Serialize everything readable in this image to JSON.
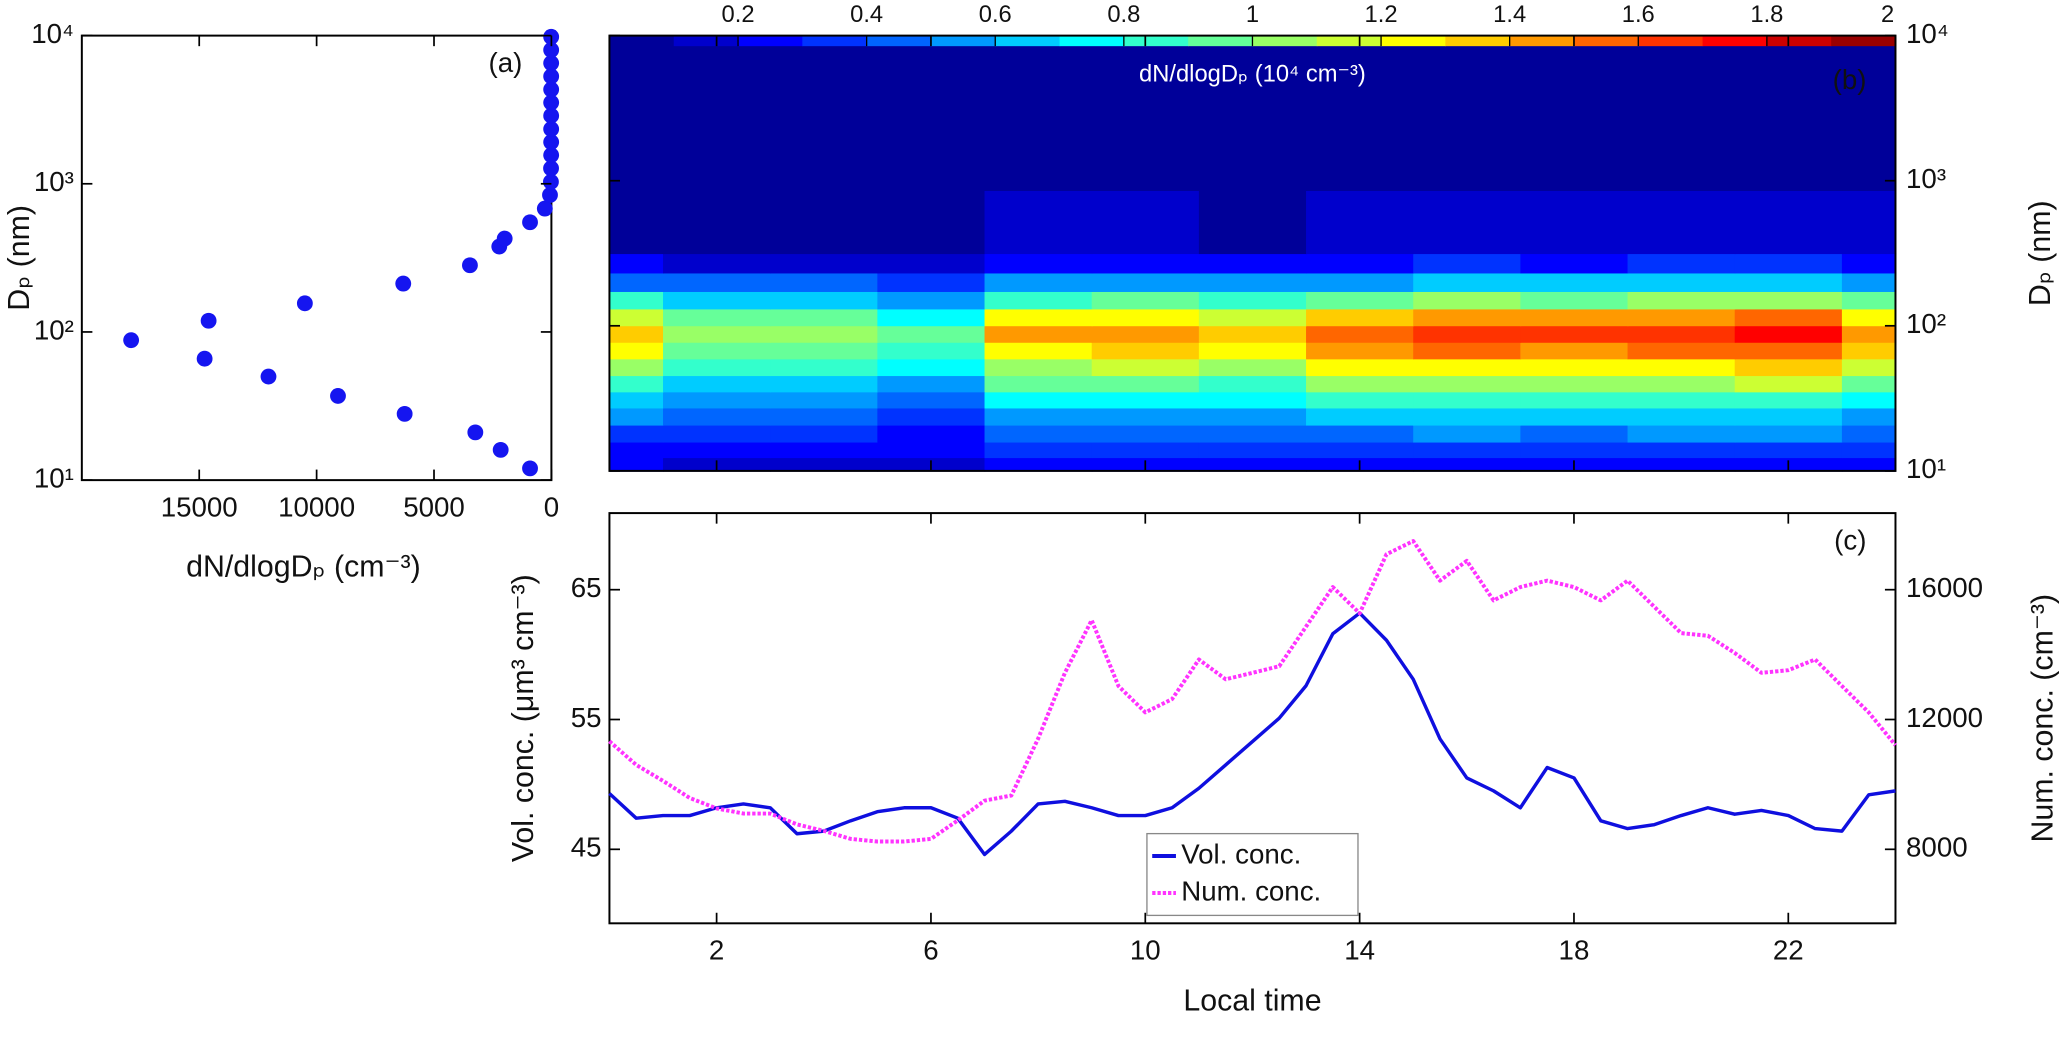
{
  "chart_data": [
    {
      "type": "scatter",
      "annotation": "(a)",
      "xlabel": "dN/dlogDₚ (cm⁻³)",
      "ylabel": "Dₚ (nm)",
      "color": "#1515f0",
      "x": [
        17900,
        14770,
        14600,
        12050,
        10500,
        9090,
        6310,
        6250,
        3470,
        3240,
        2220,
        2160,
        1990,
        910,
        910,
        280,
        60,
        20,
        15,
        10,
        10,
        10,
        10,
        10,
        10,
        10,
        10,
        10,
        10
      ],
      "y": [
        88,
        66,
        119,
        50,
        156,
        37,
        212,
        28,
        282,
        21,
        377,
        16,
        427,
        12,
        550,
        680,
        840,
        1030,
        1270,
        1560,
        1910,
        2340,
        2880,
        3530,
        4330,
        5310,
        6520,
        8000,
        9810
      ],
      "xlim": [
        20000,
        0
      ],
      "xticks": [
        15000,
        10000,
        5000,
        0
      ],
      "ylim": [
        10,
        10000
      ],
      "log_y": true,
      "yticks": [
        {
          "value": 10,
          "label": "10¹"
        },
        {
          "value": 100,
          "label": "10²"
        },
        {
          "value": 1000,
          "label": "10³"
        },
        {
          "value": 10000,
          "label": "10⁴"
        }
      ]
    },
    {
      "type": "heatmap",
      "annotation": "(b)",
      "ylabel": "Dₚ (nm)",
      "colorbar_label": "dN/dlogDₚ (10⁴ cm⁻³)",
      "colormap": "jet",
      "levels": 20,
      "x": [
        0,
        2,
        4,
        6,
        8,
        10,
        12,
        14,
        16,
        18,
        20,
        22,
        24
      ],
      "y": [
        11,
        14,
        18,
        24,
        31,
        40,
        52,
        68,
        88,
        115,
        150,
        200,
        270,
        370,
        2000
      ],
      "z": [
        [
          0.2,
          0.16,
          0.16,
          0.14,
          0.21,
          0.22,
          0.2,
          0.23,
          0.25,
          0.24,
          0.25,
          0.26,
          0.22
        ],
        [
          0.29,
          0.23,
          0.23,
          0.2,
          0.31,
          0.32,
          0.3,
          0.34,
          0.36,
          0.35,
          0.36,
          0.37,
          0.32
        ],
        [
          0.39,
          0.32,
          0.32,
          0.27,
          0.42,
          0.44,
          0.41,
          0.47,
          0.5,
          0.48,
          0.5,
          0.51,
          0.44
        ],
        [
          0.52,
          0.42,
          0.42,
          0.36,
          0.56,
          0.58,
          0.54,
          0.62,
          0.66,
          0.64,
          0.66,
          0.68,
          0.58
        ],
        [
          0.68,
          0.55,
          0.55,
          0.47,
          0.73,
          0.75,
          0.7,
          0.81,
          0.86,
          0.83,
          0.86,
          0.88,
          0.75
        ],
        [
          0.85,
          0.68,
          0.68,
          0.59,
          0.91,
          0.94,
          0.88,
          1.01,
          1.07,
          1.04,
          1.07,
          1.11,
          0.94
        ],
        [
          1.01,
          0.82,
          0.82,
          0.7,
          1.09,
          1.13,
          1.05,
          1.21,
          1.29,
          1.25,
          1.29,
          1.33,
          1.13
        ],
        [
          1.2,
          0.97,
          0.97,
          0.83,
          1.29,
          1.33,
          1.24,
          1.43,
          1.52,
          1.47,
          1.52,
          1.56,
          1.33
        ],
        [
          1.3,
          1.05,
          1.05,
          0.9,
          1.4,
          1.45,
          1.35,
          1.55,
          1.65,
          1.6,
          1.65,
          1.7,
          1.45
        ],
        [
          1.14,
          0.92,
          0.92,
          0.79,
          1.23,
          1.28,
          1.19,
          1.36,
          1.45,
          1.41,
          1.45,
          1.5,
          1.28
        ],
        [
          0.81,
          0.65,
          0.65,
          0.56,
          0.87,
          0.9,
          0.84,
          0.96,
          1.02,
          0.99,
          1.02,
          1.05,
          0.9
        ],
        [
          0.49,
          0.4,
          0.4,
          0.34,
          0.53,
          0.55,
          0.51,
          0.59,
          0.63,
          0.61,
          0.63,
          0.65,
          0.55
        ],
        [
          0.23,
          0.19,
          0.19,
          0.16,
          0.25,
          0.26,
          0.24,
          0.28,
          0.3,
          0.29,
          0.3,
          0.31,
          0.26
        ],
        [
          0.09,
          0.07,
          0.07,
          0.06,
          0.1,
          0.1,
          0.09,
          0.11,
          0.12,
          0.11,
          0.12,
          0.12,
          0.1
        ],
        [
          0.01,
          0.01,
          0.01,
          0.01,
          0.01,
          0.01,
          0.01,
          0.01,
          0.01,
          0.01,
          0.01,
          0.01,
          0.01
        ]
      ],
      "xlim": [
        0,
        24
      ],
      "xticks": [
        2,
        6,
        10,
        14,
        18,
        22
      ],
      "ylim": [
        10,
        10000
      ],
      "log_y": true,
      "yticks": [
        {
          "value": 10,
          "label": "10¹"
        },
        {
          "value": 100,
          "label": "10²"
        },
        {
          "value": 1000,
          "label": "10³"
        },
        {
          "value": 10000,
          "label": "10⁴"
        }
      ],
      "clim": [
        0,
        2
      ],
      "cticks": [
        0.2,
        0.4,
        0.6,
        0.8,
        1,
        1.2,
        1.4,
        1.6,
        1.8,
        2
      ]
    },
    {
      "type": "line",
      "annotation": "(c)",
      "xlabel": "Local time",
      "ylabel": "Vol. conc. (μm³ cm⁻³)",
      "y2label": "Num. conc. (cm⁻³)",
      "legend": "lower center",
      "x": [
        0,
        0.5,
        1,
        1.5,
        2,
        2.5,
        3,
        3.5,
        4,
        4.5,
        5,
        5.5,
        6,
        6.5,
        7,
        7.5,
        8,
        8.5,
        9,
        9.5,
        10,
        10.5,
        11,
        11.5,
        12,
        12.5,
        13,
        13.5,
        14,
        14.5,
        15,
        15.5,
        16,
        16.5,
        17,
        17.5,
        18,
        18.5,
        19,
        19.5,
        20,
        20.5,
        21,
        21.5,
        22,
        22.5,
        23,
        23.5,
        24
      ],
      "series": [
        {
          "name": "Vol. conc.",
          "color": "#0f0fdf",
          "values": [
            49.3,
            47.4,
            47.6,
            47.6,
            48.2,
            48.5,
            48.2,
            46.2,
            46.4,
            47.2,
            47.9,
            48.2,
            48.2,
            47.4,
            44.6,
            46.4,
            48.5,
            48.7,
            48.2,
            47.6,
            47.6,
            48.2,
            49.7,
            51.5,
            53.3,
            55.1,
            57.6,
            61.6,
            63.2,
            61.1,
            58.1,
            53.5,
            50.5,
            49.5,
            48.2,
            51.3,
            50.5,
            47.2,
            46.6,
            46.9,
            47.6,
            48.2,
            47.7,
            48.0,
            47.6,
            46.6,
            46.4,
            49.2,
            49.5
          ]
        },
        {
          "name": "Num. conc.",
          "color": "#ff33ff",
          "axis": "y2",
          "dashed": true,
          "values": [
            11330,
            10600,
            10110,
            9580,
            9260,
            9100,
            9100,
            8770,
            8570,
            8320,
            8240,
            8240,
            8320,
            8890,
            9500,
            9660,
            11410,
            13440,
            15060,
            13030,
            12220,
            12630,
            13850,
            13240,
            13440,
            13640,
            14860,
            16080,
            15270,
            17090,
            17500,
            16280,
            16890,
            15670,
            16080,
            16280,
            16080,
            15670,
            16280,
            15470,
            14660,
            14580,
            14050,
            13440,
            13520,
            13850,
            13030,
            12220,
            11210
          ]
        }
      ],
      "xlim": [
        0,
        24
      ],
      "xticks": [
        2,
        6,
        10,
        14,
        18,
        22
      ],
      "ylim": [
        39.3,
        70.9
      ],
      "yticks": [
        45,
        55,
        65
      ],
      "y2lim": [
        5720,
        18360
      ],
      "y2ticks": [
        8000,
        12000,
        16000
      ]
    }
  ]
}
